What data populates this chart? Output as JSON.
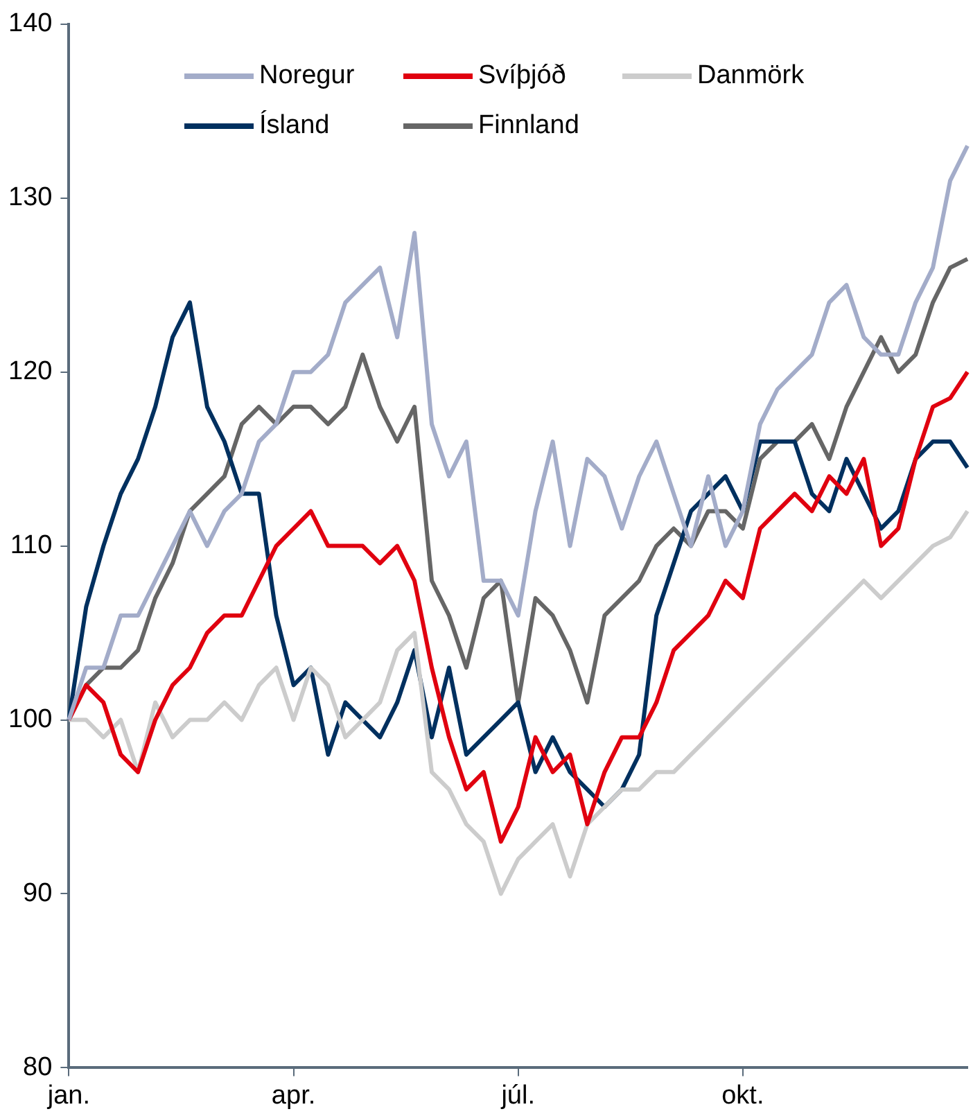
{
  "chart_data": {
    "type": "line",
    "categories": [
      "jan.",
      null,
      null,
      null,
      null,
      null,
      null,
      null,
      null,
      null,
      null,
      null,
      null,
      "apr.",
      null,
      null,
      null,
      null,
      null,
      null,
      null,
      null,
      null,
      null,
      null,
      null,
      "júl.",
      null,
      null,
      null,
      null,
      null,
      null,
      null,
      null,
      null,
      null,
      null,
      null,
      "okt.",
      null,
      null,
      null,
      null,
      null,
      null,
      null,
      null,
      null,
      null,
      null,
      null,
      null
    ],
    "ylim": [
      80,
      140
    ],
    "yticks": [
      80,
      90,
      100,
      110,
      120,
      130,
      140
    ],
    "grid": false,
    "legend": "top",
    "marker": "none",
    "line_style": "solid",
    "series": [
      {
        "name": "Noregur",
        "color": "#a3acc9",
        "values": [
          100,
          103,
          103,
          106,
          106,
          108,
          110,
          112,
          110,
          112,
          113,
          116,
          117,
          120,
          120,
          121,
          124,
          125,
          126,
          122,
          128,
          117,
          114,
          116,
          108,
          108,
          106,
          112,
          116,
          110,
          115,
          114,
          111,
          114,
          116,
          113,
          110,
          114,
          110,
          112,
          117,
          119,
          120,
          121,
          124,
          125,
          122,
          121,
          121,
          124,
          126,
          131,
          133
        ]
      },
      {
        "name": "Svíþjóð",
        "color": "#e0000f",
        "values": [
          100,
          102,
          101,
          98,
          97,
          100,
          102,
          103,
          105,
          106,
          106,
          108,
          110,
          111,
          112,
          110,
          110,
          110,
          109,
          110,
          108,
          103,
          99,
          96,
          97,
          93,
          95,
          99,
          97,
          98,
          94,
          97,
          99,
          99,
          101,
          104,
          105,
          106,
          108,
          107,
          111,
          112,
          113,
          112,
          114,
          113,
          115,
          110,
          111,
          115,
          118,
          118.5,
          120
        ]
      },
      {
        "name": "Danmörk",
        "color": "#cccccc",
        "values": [
          100,
          100,
          99,
          100,
          97,
          101,
          99,
          100,
          100,
          101,
          100,
          102,
          103,
          100,
          103,
          102,
          99,
          100,
          101,
          104,
          105,
          97,
          96,
          94,
          93,
          90,
          92,
          93,
          94,
          91,
          94,
          95,
          96,
          96,
          97,
          97,
          98,
          99,
          100,
          101,
          102,
          103,
          104,
          105,
          106,
          107,
          108,
          107,
          108,
          109,
          110,
          110.5,
          112
        ]
      },
      {
        "name": "Ísland",
        "color": "#00305f",
        "values": [
          100,
          106.5,
          110,
          113,
          115,
          118,
          122,
          124,
          118,
          116,
          113,
          113,
          106,
          102,
          103,
          98,
          101,
          100,
          99,
          101,
          104,
          99,
          103,
          98,
          99,
          100,
          101,
          97,
          99,
          97,
          96,
          95,
          96,
          98,
          106,
          109,
          112,
          113,
          114,
          112,
          116,
          116,
          116,
          113,
          112,
          115,
          113,
          111,
          112,
          115,
          116,
          116,
          114.5
        ]
      },
      {
        "name": "Finnland",
        "color": "#666666",
        "values": [
          100,
          102,
          103,
          103,
          104,
          107,
          109,
          112,
          113,
          114,
          117,
          118,
          117,
          118,
          118,
          117,
          118,
          121,
          118,
          116,
          118,
          108,
          106,
          103,
          107,
          108,
          101,
          107,
          106,
          104,
          101,
          106,
          107,
          108,
          110,
          111,
          110,
          112,
          112,
          111,
          115,
          116,
          116,
          117,
          115,
          118,
          120,
          122,
          120,
          121,
          124,
          126,
          126.5
        ]
      }
    ]
  }
}
